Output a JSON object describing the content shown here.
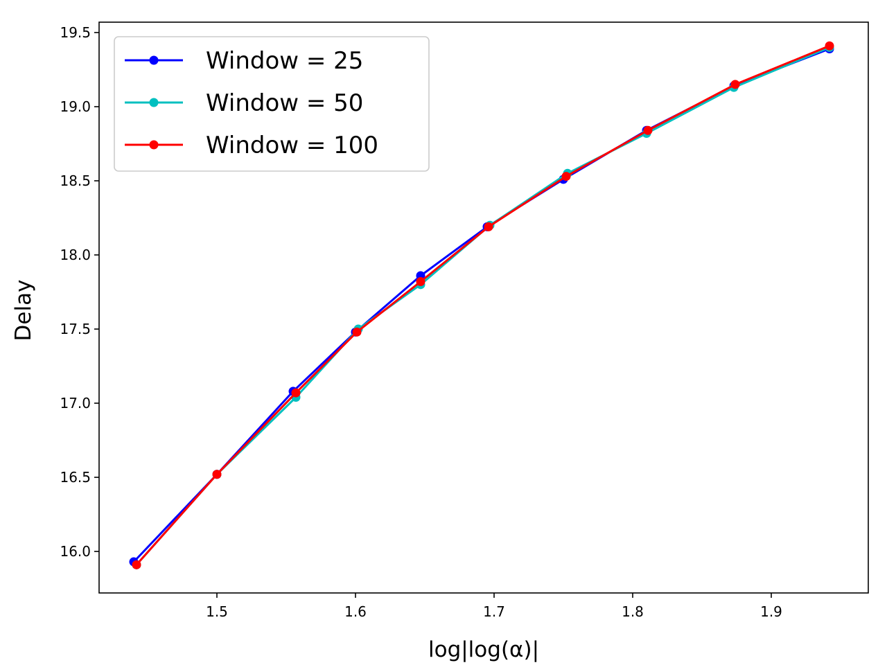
{
  "chart_data": {
    "type": "line",
    "title": "",
    "xlabel": "log|log(α)|",
    "ylabel": "Delay",
    "xlim": [
      1.415,
      1.97
    ],
    "ylim": [
      15.72,
      19.57
    ],
    "xticks": [
      1.5,
      1.6,
      1.7,
      1.8,
      1.9
    ],
    "xtick_labels": [
      "1.5",
      "1.6",
      "1.7",
      "1.8",
      "1.9"
    ],
    "yticks": [
      16.0,
      16.5,
      17.0,
      17.5,
      18.0,
      18.5,
      19.0,
      19.5
    ],
    "ytick_labels": [
      "16.0",
      "16.5",
      "17.0",
      "17.5",
      "18.0",
      "18.5",
      "19.0",
      "19.5"
    ],
    "grid": false,
    "legend_position": "top-left",
    "series": [
      {
        "name": "Window = 25",
        "color": "#0000ff",
        "x": [
          1.44,
          1.5,
          1.555,
          1.6,
          1.647,
          1.695,
          1.75,
          1.81,
          1.873,
          1.942
        ],
        "y": [
          15.93,
          16.52,
          17.08,
          17.48,
          17.86,
          18.19,
          18.51,
          18.84,
          19.14,
          19.39
        ]
      },
      {
        "name": "Window = 50",
        "color": "#00bfbf",
        "x": [
          1.442,
          1.5,
          1.557,
          1.602,
          1.647,
          1.697,
          1.753,
          1.81,
          1.873,
          1.942
        ],
        "y": [
          15.91,
          16.52,
          17.04,
          17.5,
          17.8,
          18.2,
          18.55,
          18.82,
          19.13,
          19.4
        ]
      },
      {
        "name": "Window = 100",
        "color": "#ff0000",
        "x": [
          1.442,
          1.5,
          1.557,
          1.601,
          1.647,
          1.696,
          1.752,
          1.811,
          1.874,
          1.942
        ],
        "y": [
          15.91,
          16.52,
          17.07,
          17.48,
          17.82,
          18.19,
          18.53,
          18.84,
          19.15,
          19.41
        ]
      }
    ]
  }
}
